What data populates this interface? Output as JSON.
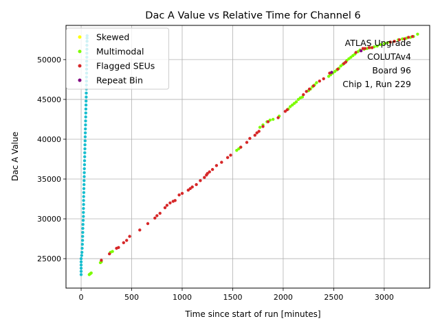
{
  "chart_data": {
    "type": "scatter",
    "title": "Dac A Value vs Relative Time for Channel 6",
    "xlabel": "Time since start of run [minutes]",
    "ylabel": "Dac A Value",
    "xlim": [
      -150,
      3450
    ],
    "ylim": [
      21300,
      54300
    ],
    "xticks": [
      0,
      500,
      1000,
      1500,
      2000,
      2500,
      3000
    ],
    "yticks": [
      25000,
      30000,
      35000,
      40000,
      45000,
      50000
    ],
    "grid": true,
    "legend_position": "top-left",
    "annotation": {
      "lines": [
        "ATLAS Upgrade",
        "COLUTAv4",
        "Board 96",
        "Chip 1, Run 229"
      ]
    },
    "series": [
      {
        "name": "Skewed",
        "color": "#ffff00",
        "points": []
      },
      {
        "name": "Multimodal",
        "color": "#7cfc00",
        "points": [
          [
            80,
            23000
          ],
          [
            90,
            23100
          ],
          [
            100,
            23200
          ],
          [
            190,
            24500
          ],
          [
            200,
            24600
          ],
          [
            290,
            25800
          ],
          [
            310,
            25900
          ],
          [
            1540,
            38600
          ],
          [
            1560,
            38800
          ],
          [
            1580,
            39000
          ],
          [
            1770,
            41500
          ],
          [
            1800,
            41800
          ],
          [
            1840,
            42200
          ],
          [
            1870,
            42400
          ],
          [
            1900,
            42500
          ],
          [
            1960,
            42900
          ],
          [
            2050,
            43800
          ],
          [
            2070,
            44100
          ],
          [
            2090,
            44300
          ],
          [
            2110,
            44500
          ],
          [
            2130,
            44700
          ],
          [
            2150,
            45000
          ],
          [
            2170,
            45200
          ],
          [
            2190,
            45300
          ],
          [
            2250,
            46100
          ],
          [
            2270,
            46300
          ],
          [
            2290,
            46600
          ],
          [
            2310,
            46800
          ],
          [
            2330,
            47100
          ],
          [
            2450,
            47900
          ],
          [
            2470,
            48100
          ],
          [
            2490,
            48300
          ],
          [
            2510,
            48500
          ],
          [
            2530,
            48700
          ],
          [
            2550,
            48900
          ],
          [
            2570,
            49200
          ],
          [
            2590,
            49400
          ],
          [
            2610,
            49600
          ],
          [
            2630,
            49900
          ],
          [
            2650,
            50100
          ],
          [
            2670,
            50300
          ],
          [
            2690,
            50500
          ],
          [
            2710,
            50700
          ],
          [
            2740,
            51000
          ],
          [
            2760,
            51200
          ],
          [
            2800,
            51300
          ],
          [
            2830,
            51400
          ],
          [
            2860,
            51500
          ],
          [
            2900,
            51600
          ],
          [
            2930,
            51700
          ],
          [
            2960,
            51900
          ],
          [
            3000,
            52000
          ],
          [
            3030,
            52100
          ],
          [
            3060,
            52200
          ],
          [
            3100,
            52300
          ],
          [
            3140,
            52500
          ],
          [
            3180,
            52600
          ],
          [
            3220,
            52700
          ],
          [
            3260,
            52800
          ],
          [
            3290,
            52900
          ],
          [
            3330,
            53200
          ]
        ]
      },
      {
        "name": "Flagged SEUs",
        "color": "#d62728",
        "points": [
          [
            200,
            24800
          ],
          [
            280,
            25600
          ],
          [
            350,
            26300
          ],
          [
            370,
            26400
          ],
          [
            420,
            27000
          ],
          [
            450,
            27300
          ],
          [
            480,
            27800
          ],
          [
            580,
            28600
          ],
          [
            660,
            29400
          ],
          [
            730,
            30100
          ],
          [
            750,
            30400
          ],
          [
            780,
            30700
          ],
          [
            830,
            31400
          ],
          [
            850,
            31700
          ],
          [
            880,
            32000
          ],
          [
            910,
            32200
          ],
          [
            930,
            32300
          ],
          [
            970,
            33000
          ],
          [
            1000,
            33200
          ],
          [
            1060,
            33600
          ],
          [
            1080,
            33800
          ],
          [
            1100,
            34000
          ],
          [
            1140,
            34300
          ],
          [
            1180,
            34800
          ],
          [
            1220,
            35200
          ],
          [
            1240,
            35500
          ],
          [
            1250,
            35700
          ],
          [
            1270,
            35900
          ],
          [
            1300,
            36200
          ],
          [
            1340,
            36700
          ],
          [
            1390,
            37100
          ],
          [
            1450,
            37700
          ],
          [
            1480,
            38000
          ],
          [
            1580,
            39000
          ],
          [
            1640,
            39600
          ],
          [
            1670,
            40100
          ],
          [
            1720,
            40500
          ],
          [
            1740,
            40800
          ],
          [
            1760,
            41000
          ],
          [
            1800,
            41600
          ],
          [
            1850,
            42200
          ],
          [
            1950,
            42700
          ],
          [
            2020,
            43500
          ],
          [
            2040,
            43700
          ],
          [
            2200,
            45600
          ],
          [
            2230,
            46000
          ],
          [
            2260,
            46300
          ],
          [
            2300,
            46700
          ],
          [
            2360,
            47300
          ],
          [
            2400,
            47600
          ],
          [
            2460,
            48300
          ],
          [
            2540,
            48800
          ],
          [
            2600,
            49500
          ],
          [
            2620,
            49700
          ],
          [
            2720,
            50900
          ],
          [
            2790,
            51400
          ],
          [
            2810,
            51400
          ],
          [
            2850,
            51500
          ],
          [
            2880,
            51500
          ],
          [
            3060,
            52200
          ],
          [
            3100,
            52300
          ],
          [
            3150,
            52500
          ],
          [
            3200,
            52600
          ],
          [
            3240,
            52800
          ],
          [
            3280,
            52900
          ]
        ]
      },
      {
        "name": "Repeat Bin",
        "color": "#800080",
        "points": [
          [
            2480,
            48400
          ],
          [
            2770,
            51100
          ]
        ]
      },
      {
        "name": "",
        "color": "#17becf",
        "points": [
          [
            0,
            23000
          ],
          [
            0,
            23400
          ],
          [
            0,
            23800
          ],
          [
            0,
            24200
          ],
          [
            0,
            24600
          ],
          [
            0,
            25000
          ],
          [
            5,
            25400
          ],
          [
            8,
            25800
          ],
          [
            10,
            26300
          ],
          [
            12,
            26800
          ],
          [
            14,
            27300
          ],
          [
            15,
            27800
          ],
          [
            16,
            28300
          ],
          [
            17,
            28800
          ],
          [
            18,
            29300
          ],
          [
            20,
            29800
          ],
          [
            22,
            30300
          ],
          [
            22,
            30800
          ],
          [
            23,
            31300
          ],
          [
            24,
            31800
          ],
          [
            24,
            32300
          ],
          [
            25,
            32800
          ],
          [
            26,
            33300
          ],
          [
            27,
            33800
          ],
          [
            28,
            34300
          ],
          [
            29,
            34800
          ],
          [
            30,
            35300
          ],
          [
            31,
            35800
          ],
          [
            32,
            36300
          ],
          [
            33,
            36800
          ],
          [
            34,
            37300
          ],
          [
            35,
            37800
          ],
          [
            36,
            38300
          ],
          [
            37,
            38800
          ],
          [
            38,
            39300
          ],
          [
            39,
            39800
          ],
          [
            40,
            40300
          ],
          [
            41,
            40800
          ],
          [
            42,
            41300
          ],
          [
            43,
            41800
          ],
          [
            44,
            42300
          ],
          [
            45,
            42800
          ],
          [
            46,
            43300
          ],
          [
            47,
            43800
          ],
          [
            48,
            44300
          ],
          [
            49,
            44800
          ],
          [
            50,
            45300
          ],
          [
            51,
            45800
          ],
          [
            52,
            46300
          ],
          [
            52,
            46800
          ],
          [
            53,
            47300
          ],
          [
            53,
            47800
          ],
          [
            54,
            48300
          ],
          [
            54,
            48800
          ],
          [
            55,
            49300
          ],
          [
            55,
            49800
          ],
          [
            56,
            50300
          ],
          [
            56,
            50800
          ],
          [
            57,
            51300
          ],
          [
            57,
            51800
          ],
          [
            58,
            52300
          ],
          [
            58,
            52700
          ],
          [
            59,
            53000
          ]
        ]
      }
    ]
  }
}
